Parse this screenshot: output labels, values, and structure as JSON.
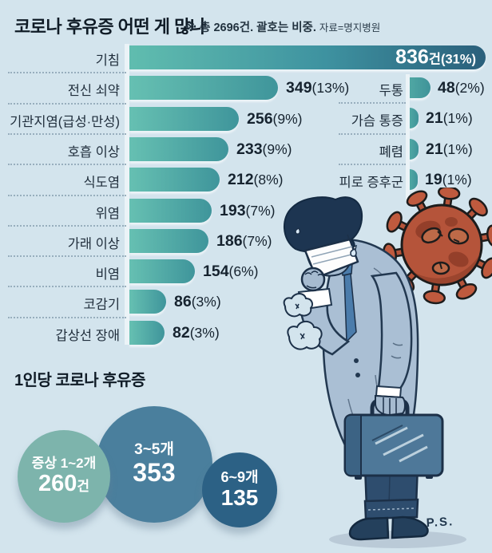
{
  "header": {
    "title": "코로나 후유증 어떤 게 많나",
    "note": "※ 총 2696건. 괄호는 비중.",
    "source": "자료=명지병원"
  },
  "chart_data": {
    "type": "bar",
    "orientation": "horizontal",
    "title": "코로나 후유증 어떤 게 많나",
    "total_cases": 2696,
    "max_value": 836,
    "bar_color_start": "#66c0b2",
    "bar_color_end": "#2a5f7b",
    "main_series": [
      {
        "label": "기침",
        "value": 836,
        "pct": "31%",
        "unit": "건"
      },
      {
        "label": "전신 쇠약",
        "value": 349,
        "pct": "13%"
      },
      {
        "label": "기관지염(급성·만성)",
        "value": 256,
        "pct": "9%"
      },
      {
        "label": "호흡 이상",
        "value": 233,
        "pct": "9%"
      },
      {
        "label": "식도염",
        "value": 212,
        "pct": "8%"
      },
      {
        "label": "위염",
        "value": 193,
        "pct": "7%"
      },
      {
        "label": "가래 이상",
        "value": 186,
        "pct": "7%"
      },
      {
        "label": "비염",
        "value": 154,
        "pct": "6%"
      },
      {
        "label": "코감기",
        "value": 86,
        "pct": "3%"
      },
      {
        "label": "갑상선 장애",
        "value": 82,
        "pct": "3%"
      }
    ],
    "secondary_series": [
      {
        "label": "두통",
        "value": 48,
        "pct": "2%"
      },
      {
        "label": "가슴 통증",
        "value": 21,
        "pct": "1%"
      },
      {
        "label": "폐렴",
        "value": 21,
        "pct": "1%"
      },
      {
        "label": "피로 증후군",
        "value": 19,
        "pct": "1%"
      }
    ]
  },
  "per_person": {
    "title": "1인당 코로나 후유증",
    "bubbles": [
      {
        "label": "증상 1~2개",
        "value": "260",
        "unit": "건",
        "color": "#7db4ac"
      },
      {
        "label": "3~5개",
        "value": "353",
        "unit": "",
        "color": "#4a7f9d"
      },
      {
        "label": "6~9개",
        "value": "135",
        "unit": "",
        "color": "#2c6185"
      }
    ]
  },
  "illustration": {
    "signature": "P.S.",
    "icons": [
      "coughing-man-icon",
      "coronavirus-icon",
      "briefcase-icon",
      "cough-puff-icon"
    ]
  }
}
